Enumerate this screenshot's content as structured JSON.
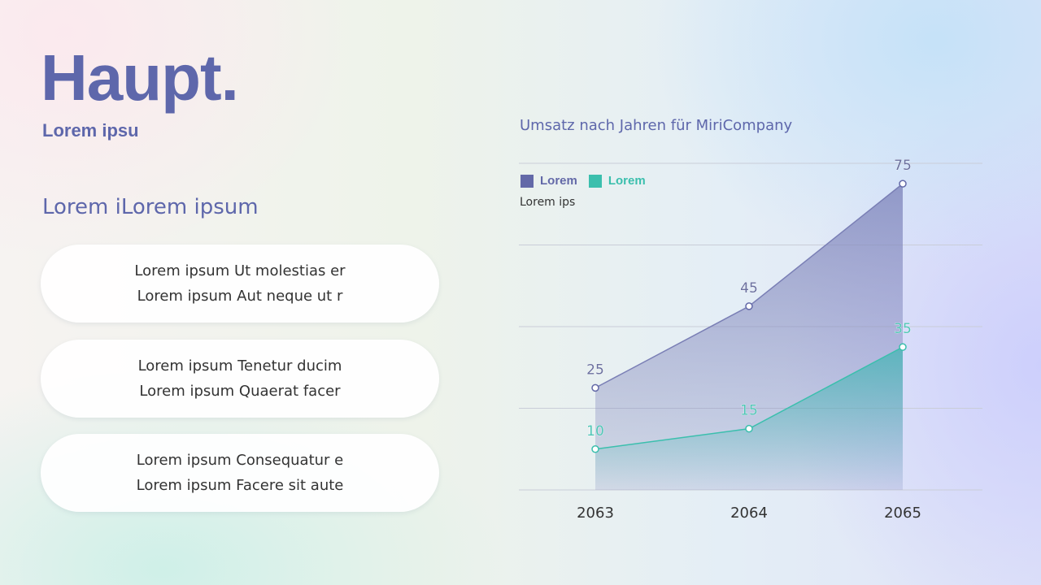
{
  "header": {
    "title": "Haupt.",
    "subtitle": "Lorem ipsu"
  },
  "section_title": "Lorem iLorem ipsum",
  "cards": [
    {
      "line1": "Lorem ipsum Ut molestias er",
      "line2": "Lorem ipsum Aut neque ut r"
    },
    {
      "line1": "Lorem ipsum Tenetur ducim",
      "line2": "Lorem ipsum Quaerat facer"
    },
    {
      "line1": "Lorem ipsum Consequatur e",
      "line2": "Lorem ipsum Facere sit aute"
    }
  ],
  "chart_data": {
    "type": "area",
    "title": "Umsatz nach Jahren für MiriCompany",
    "ylabel": "Lorem ips",
    "categories": [
      "2063",
      "2064",
      "2065"
    ],
    "series": [
      {
        "name": "Lorem",
        "values": [
          25,
          45,
          75
        ],
        "color": "#6369a8"
      },
      {
        "name": "Lorem",
        "values": [
          10,
          15,
          35
        ],
        "color": "#3bbfad"
      }
    ],
    "ylim": [
      0,
      80
    ],
    "grid": true,
    "legend": "top-left"
  }
}
